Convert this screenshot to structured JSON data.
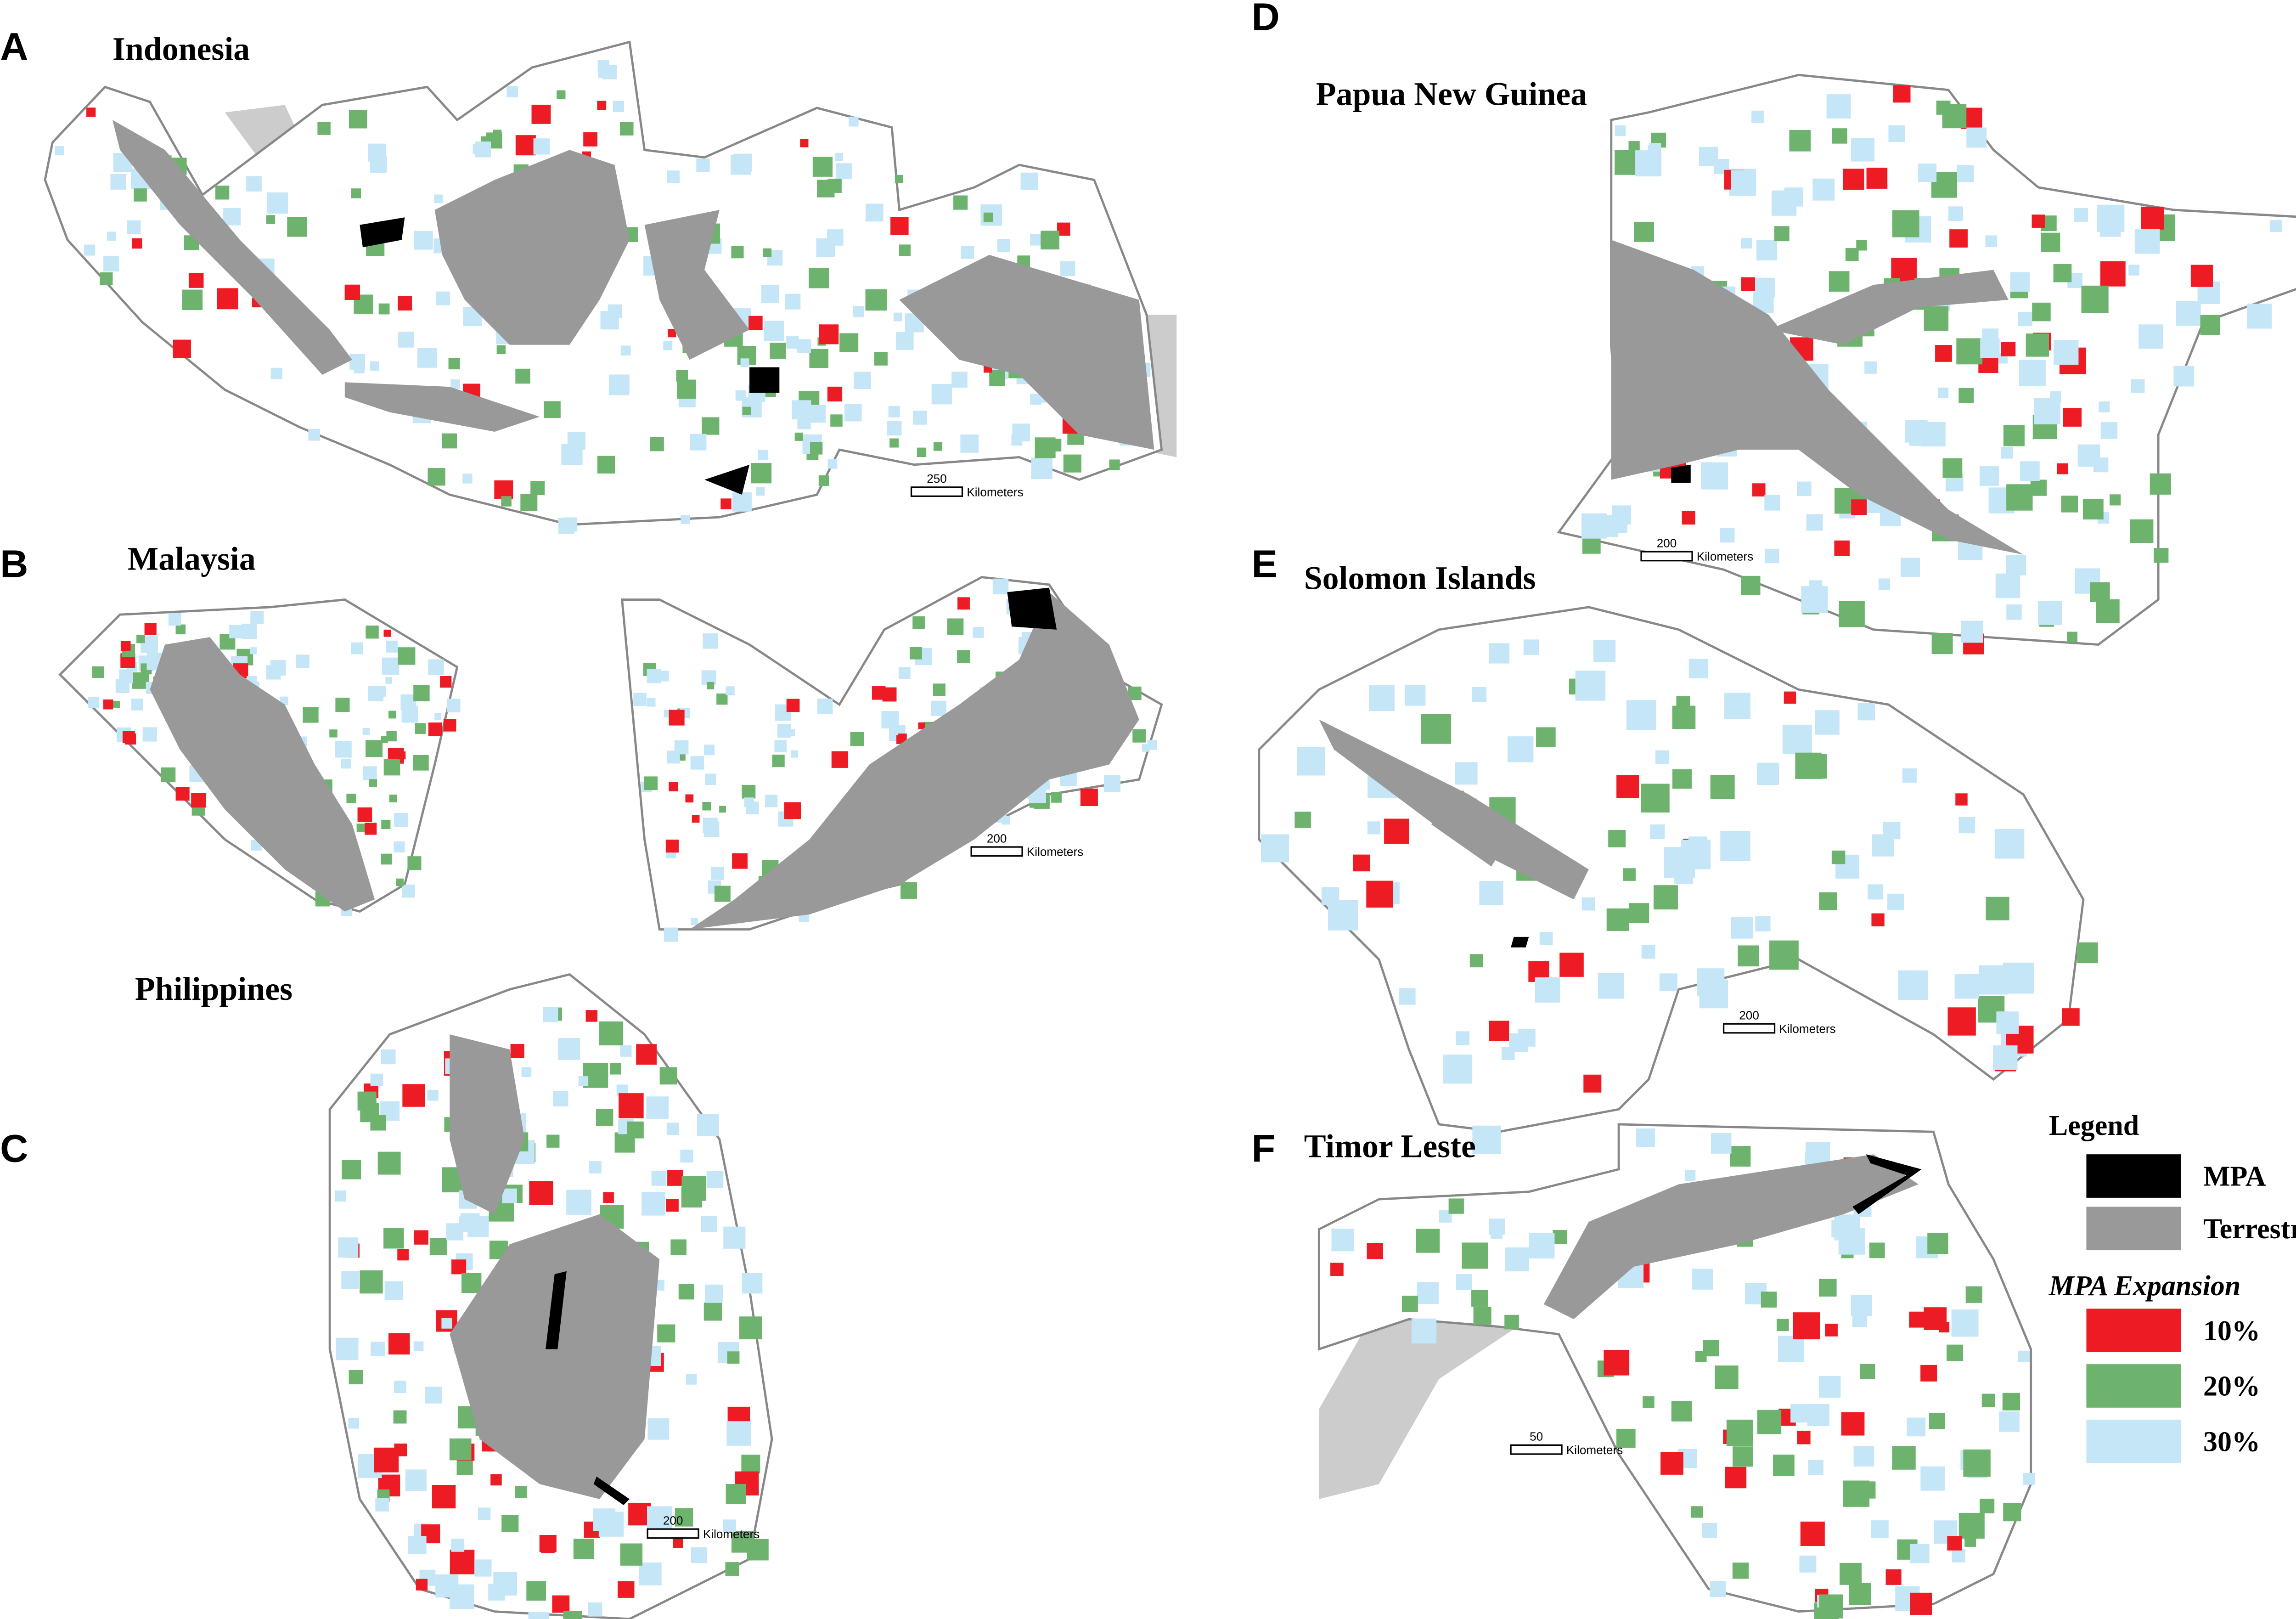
{
  "panels": [
    {
      "letter": "A",
      "title": "Indonesia",
      "scale_value": "250",
      "scale_unit": "Kilometers"
    },
    {
      "letter": "B",
      "title": "Malaysia",
      "scale_value": "200",
      "scale_unit": "Kilometers"
    },
    {
      "letter": "C",
      "title": "Philippines",
      "scale_value": "200",
      "scale_unit": "Kilometers"
    },
    {
      "letter": "D",
      "title": "Papua New Guinea",
      "scale_value": "200",
      "scale_unit": "Kilometers"
    },
    {
      "letter": "E",
      "title": "Solomon Islands",
      "scale_value": "200",
      "scale_unit": "Kilometers"
    },
    {
      "letter": "F",
      "title": "Timor Leste",
      "scale_value": "50",
      "scale_unit": "Kilometers"
    }
  ],
  "legend": {
    "title": "Legend",
    "subtitle": "MPA Expansion",
    "items": [
      {
        "label": "MPA",
        "color": "#000000"
      },
      {
        "label": "Terrestrial",
        "color": "#999999"
      }
    ],
    "expansion": [
      {
        "label": "10%",
        "color": "#ed1c24"
      },
      {
        "label": "20%",
        "color": "#6db36d"
      },
      {
        "label": "30%",
        "color": "#c5e6f7"
      }
    ]
  }
}
